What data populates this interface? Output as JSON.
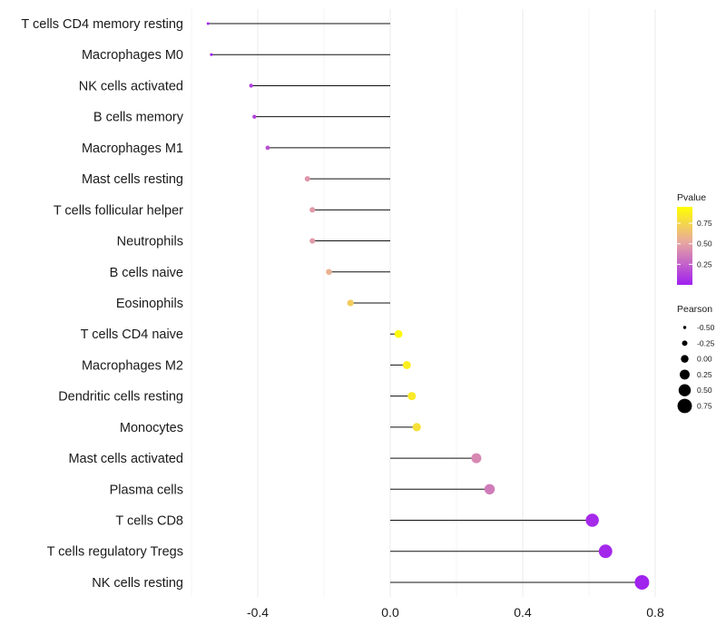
{
  "chart_data": {
    "type": "lollipop",
    "title": "",
    "xlabel": "",
    "ylabel": "",
    "xlim": [
      -0.6,
      0.8
    ],
    "x_ticks": [
      {
        "value": -0.4,
        "label": "-0.4"
      },
      {
        "value": 0.0,
        "label": "0.0"
      },
      {
        "value": 0.4,
        "label": "0.4"
      },
      {
        "value": 0.8,
        "label": "0.8"
      }
    ],
    "points": [
      {
        "category": "T cells CD4 memory resting",
        "pearson": -0.55,
        "pvalue": 0.02
      },
      {
        "category": "Macrophages M0",
        "pearson": -0.54,
        "pvalue": 0.02
      },
      {
        "category": "NK cells activated",
        "pearson": -0.42,
        "pvalue": 0.12
      },
      {
        "category": "B cells memory",
        "pearson": -0.41,
        "pvalue": 0.13
      },
      {
        "category": "Macrophages M1",
        "pearson": -0.37,
        "pvalue": 0.18
      },
      {
        "category": "Mast cells resting",
        "pearson": -0.25,
        "pvalue": 0.45
      },
      {
        "category": "T cells follicular helper",
        "pearson": -0.235,
        "pvalue": 0.47
      },
      {
        "category": "Neutrophils",
        "pearson": -0.235,
        "pvalue": 0.47
      },
      {
        "category": "B cells naive",
        "pearson": -0.185,
        "pvalue": 0.56
      },
      {
        "category": "Eosinophils",
        "pearson": -0.12,
        "pvalue": 0.7
      },
      {
        "category": "T cells CD4 naive",
        "pearson": 0.025,
        "pvalue": 0.93
      },
      {
        "category": "Macrophages M2",
        "pearson": 0.05,
        "pvalue": 0.87
      },
      {
        "category": "Dendritic cells resting",
        "pearson": 0.065,
        "pvalue": 0.84
      },
      {
        "category": "Monocytes",
        "pearson": 0.08,
        "pvalue": 0.8
      },
      {
        "category": "Mast cells activated",
        "pearson": 0.26,
        "pvalue": 0.4
      },
      {
        "category": "Plasma cells",
        "pearson": 0.3,
        "pvalue": 0.35
      },
      {
        "category": "T cells CD8",
        "pearson": 0.61,
        "pvalue": 0.04
      },
      {
        "category": "T cells regulatory  Tregs",
        "pearson": 0.65,
        "pvalue": 0.03
      },
      {
        "category": "NK cells resting",
        "pearson": 0.76,
        "pvalue": 0.01
      }
    ],
    "color_legend": {
      "title": "Pvalue",
      "ticks": [
        {
          "value": 0.75,
          "label": "0.75"
        },
        {
          "value": 0.5,
          "label": "0.50"
        },
        {
          "value": 0.25,
          "label": "0.25"
        }
      ],
      "range": [
        0.0,
        0.95
      ],
      "colors": [
        "#a020f0",
        "#e8a8a0",
        "#ffff00"
      ]
    },
    "size_legend": {
      "title": "Pearson",
      "entries": [
        {
          "value": -0.5,
          "label": "-0.50"
        },
        {
          "value": -0.25,
          "label": "-0.25"
        },
        {
          "value": 0.0,
          "label": "0.00"
        },
        {
          "value": 0.25,
          "label": "0.25"
        },
        {
          "value": 0.5,
          "label": "0.50"
        },
        {
          "value": 0.75,
          "label": "0.75"
        }
      ]
    },
    "gridlines": true,
    "legend_position": "right"
  }
}
